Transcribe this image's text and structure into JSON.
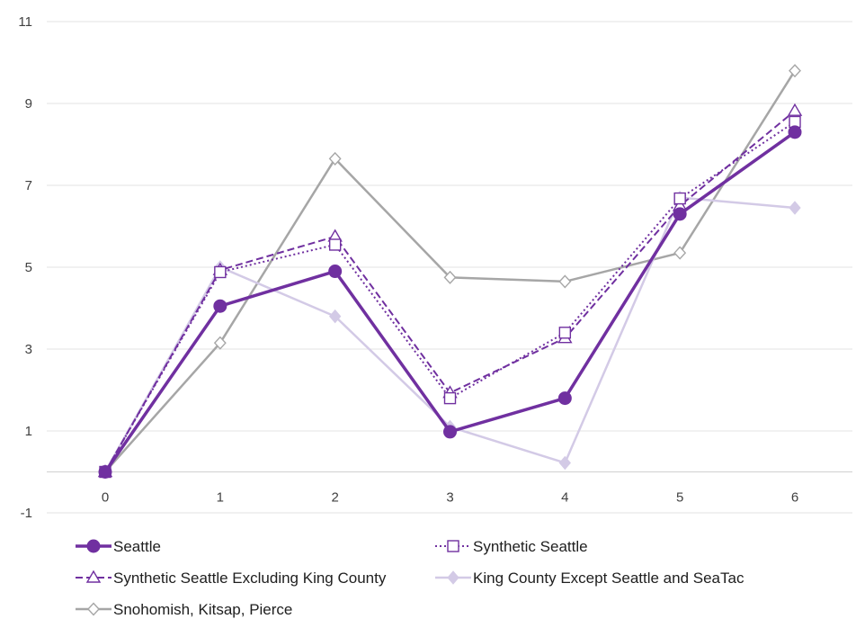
{
  "chart_data": {
    "type": "line",
    "title": "",
    "xlabel": "",
    "ylabel": "",
    "x": [
      0,
      1,
      2,
      3,
      4,
      5,
      6
    ],
    "ylim": [
      -1,
      11
    ],
    "yticks": [
      -1,
      1,
      3,
      5,
      7,
      9,
      11
    ],
    "grid": true,
    "legend_position": "bottom",
    "series": [
      {
        "name": "Seattle",
        "values": [
          0.0,
          4.05,
          4.9,
          0.98,
          1.8,
          6.3,
          8.3
        ],
        "color": "#7030a0",
        "line_style": "solid",
        "marker": "filled-circle"
      },
      {
        "name": "Synthetic Seattle",
        "values": [
          0.0,
          4.88,
          5.55,
          1.8,
          3.4,
          6.68,
          8.55
        ],
        "color": "#7030a0",
        "line_style": "dotted",
        "marker": "hollow-square"
      },
      {
        "name": "Synthetic Seattle Excluding King County",
        "values": [
          0.0,
          4.93,
          5.75,
          1.93,
          3.27,
          6.5,
          8.82
        ],
        "color": "#7030a0",
        "line_style": "dashed",
        "marker": "hollow-triangle"
      },
      {
        "name": "King County Except Seattle and SeaTac",
        "values": [
          0.0,
          5.0,
          3.8,
          1.1,
          0.22,
          6.7,
          6.45
        ],
        "color": "#d3cae6",
        "line_style": "solid",
        "marker": "filled-diamond"
      },
      {
        "name": "Snohomish, Kitsap, Pierce",
        "values": [
          0.0,
          3.15,
          7.65,
          4.75,
          4.65,
          5.35,
          9.8
        ],
        "color": "#a6a6a6",
        "line_style": "solid",
        "marker": "hollow-diamond"
      }
    ]
  }
}
